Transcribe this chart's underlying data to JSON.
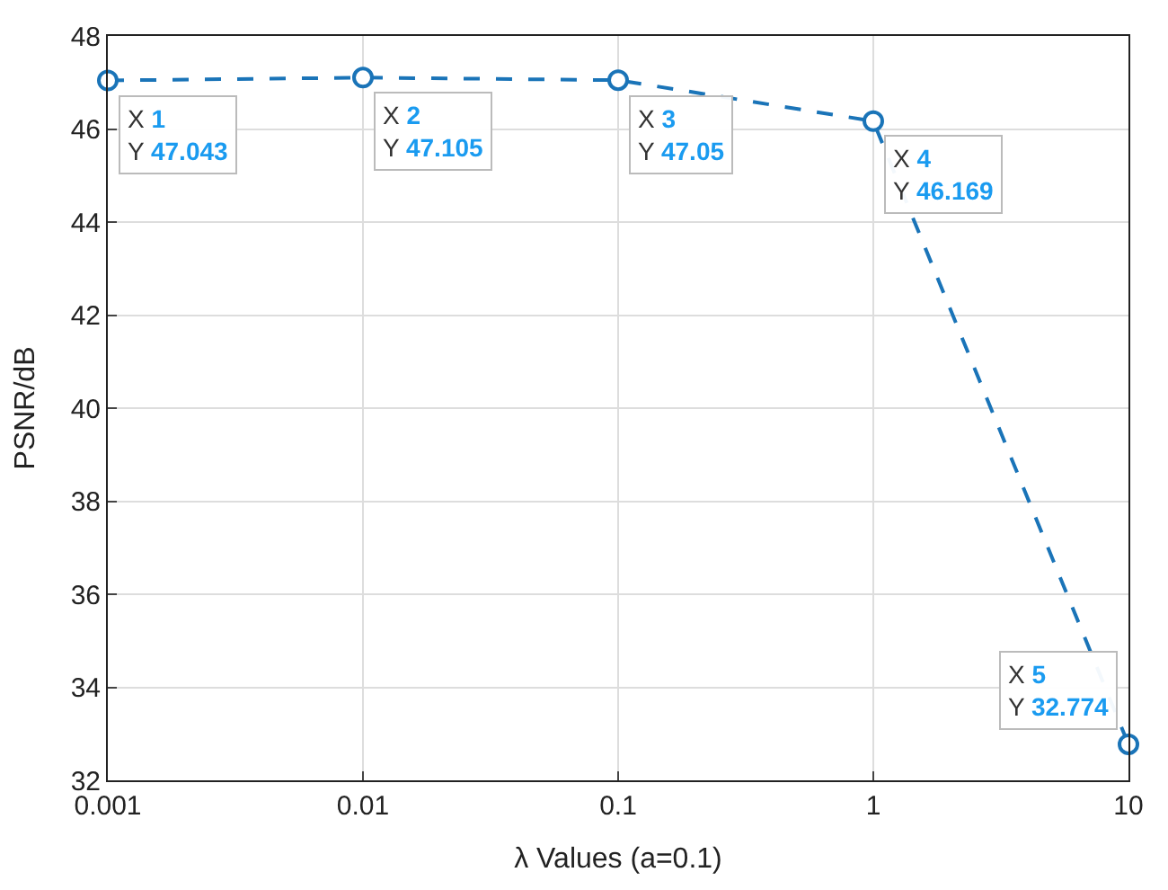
{
  "chart_data": {
    "type": "line",
    "xlabel": "λ Values (a=0.1)",
    "ylabel": "PSNR/dB",
    "categories": [
      "0.001",
      "0.01",
      "0.1",
      "1",
      "10"
    ],
    "series": [
      {
        "color": "#1a74b8",
        "values": [
          47.043,
          47.105,
          47.05,
          46.169,
          32.774
        ]
      }
    ],
    "ylim": [
      32,
      48
    ],
    "yticks": [
      32,
      34,
      36,
      38,
      40,
      42,
      44,
      46,
      48
    ],
    "grid": true,
    "marker": "circle",
    "line_style": "dashed",
    "annotations": [
      {
        "text": "X 1\nY 47.043",
        "x": "0.001",
        "y": 47.043
      },
      {
        "text": "X 2\nY 47.105",
        "x": "0.01",
        "y": 47.105
      },
      {
        "text": "X 3\nY 47.05",
        "x": "0.1",
        "y": 47.05
      },
      {
        "text": "X 4\nY 46.169",
        "x": "1",
        "y": 46.169
      },
      {
        "text": "X 5\nY 32.774",
        "x": "10",
        "y": 32.774
      }
    ]
  }
}
